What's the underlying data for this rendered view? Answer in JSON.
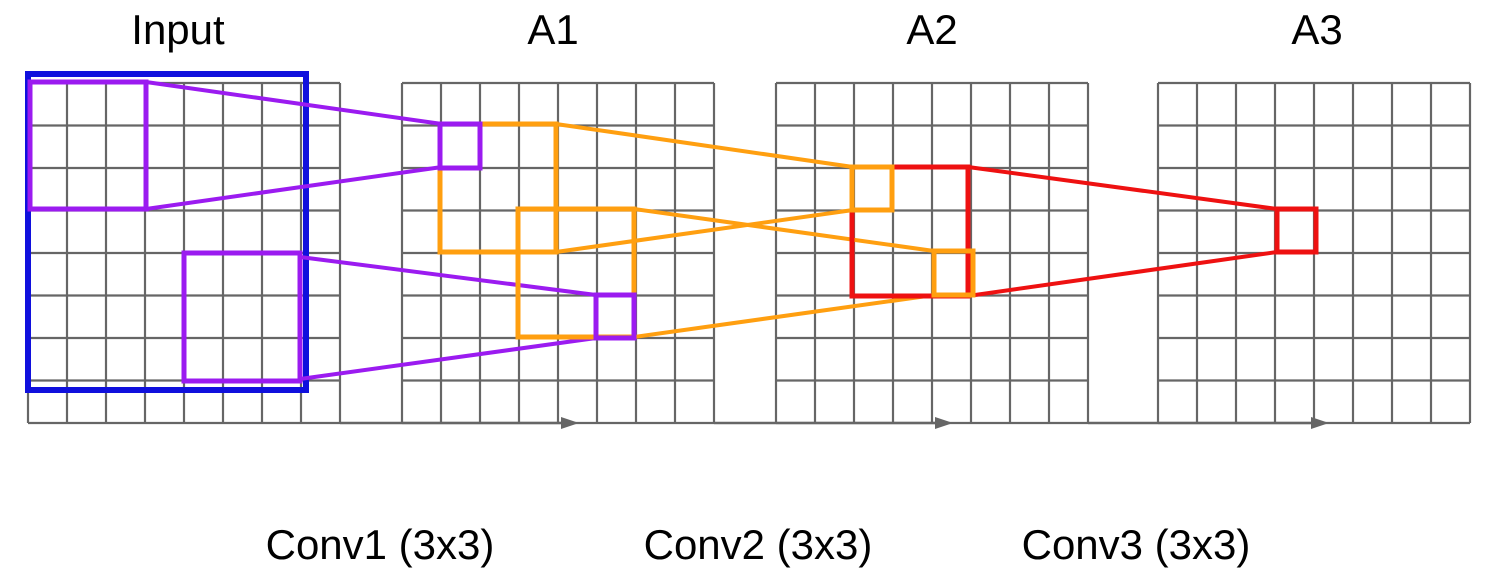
{
  "colors": {
    "grid": "#666666",
    "input_receptive_field": "#1010dd",
    "conv1_kernel": "#9b1bf0",
    "conv2_kernel": "#ff9f10",
    "conv3_kernel": "#ee1111",
    "arrow": "#666666",
    "text": "#000000"
  },
  "grids": [
    {
      "title": "Input"
    },
    {
      "title": "A1"
    },
    {
      "title": "A2"
    },
    {
      "title": "A3"
    }
  ],
  "operations": [
    {
      "label": "Conv1 (3x3)"
    },
    {
      "label": "Conv2 (3x3)"
    },
    {
      "label": "Conv3 (3x3)"
    }
  ]
}
